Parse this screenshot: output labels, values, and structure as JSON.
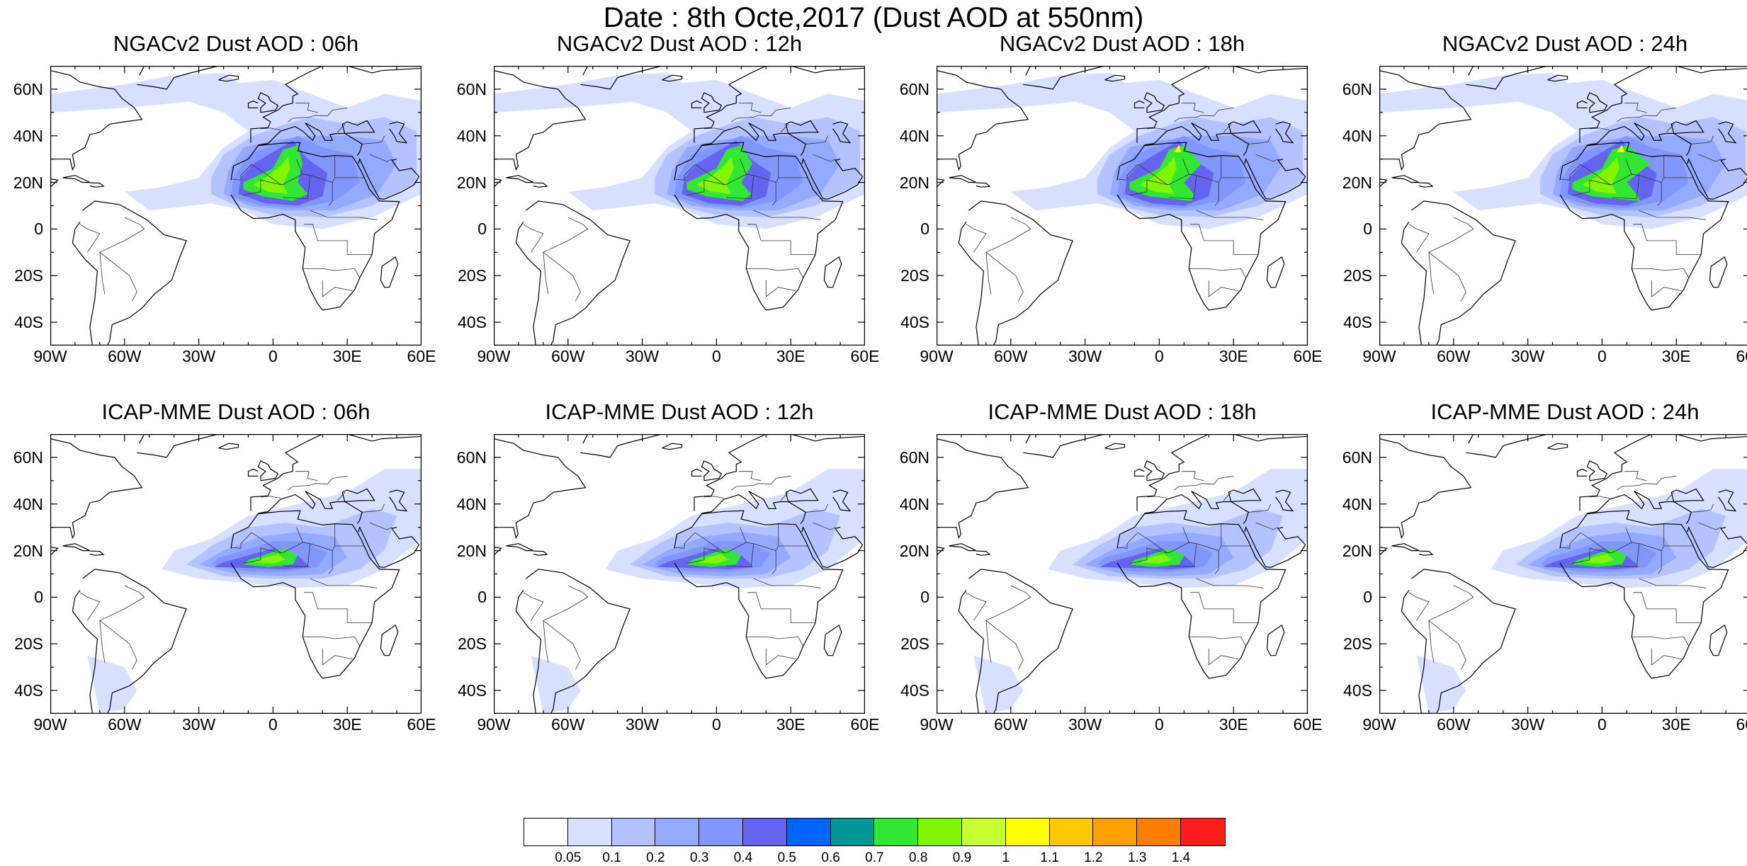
{
  "title": "Date : 8th Octe,2017 (Dust AOD at 550nm)",
  "panels": [
    {
      "title": "NGACv2 Dust AOD : 06h",
      "model": "NGACv2",
      "hour": "06h"
    },
    {
      "title": "NGACv2 Dust AOD : 12h",
      "model": "NGACv2",
      "hour": "12h"
    },
    {
      "title": "NGACv2 Dust AOD : 18h",
      "model": "NGACv2",
      "hour": "18h"
    },
    {
      "title": "NGACv2 Dust AOD : 24h",
      "model": "NGACv2",
      "hour": "24h"
    },
    {
      "title": "ICAP-MME Dust AOD : 06h",
      "model": "ICAP-MME",
      "hour": "06h"
    },
    {
      "title": "ICAP-MME Dust AOD : 12h",
      "model": "ICAP-MME",
      "hour": "12h"
    },
    {
      "title": "ICAP-MME Dust AOD : 18h",
      "model": "ICAP-MME",
      "hour": "18h"
    },
    {
      "title": "ICAP-MME Dust AOD : 24h",
      "model": "ICAP-MME",
      "hour": "24h"
    }
  ],
  "lat_ticks": [
    "60N",
    "40N",
    "20N",
    "0",
    "20S",
    "40S"
  ],
  "lon_ticks": [
    "90W",
    "60W",
    "30W",
    "0",
    "30E",
    "60E"
  ],
  "map_extent": {
    "lon": [
      -90,
      60
    ],
    "lat": [
      -50,
      70
    ]
  },
  "colorbar": {
    "labels": [
      "0.05",
      "0.1",
      "0.2",
      "0.3",
      "0.4",
      "0.5",
      "0.6",
      "0.7",
      "0.8",
      "0.9",
      "1",
      "1.1",
      "1.2",
      "1.3",
      "1.4"
    ],
    "colors": [
      "#ffffff",
      "#d7e1ff",
      "#b4c3ff",
      "#94aaff",
      "#8296ff",
      "#6464f0",
      "#0064ff",
      "#009696",
      "#32e632",
      "#82f500",
      "#c8ff32",
      "#ffff00",
      "#ffc800",
      "#ffa000",
      "#ff7d00",
      "#ff1e1e"
    ]
  }
}
